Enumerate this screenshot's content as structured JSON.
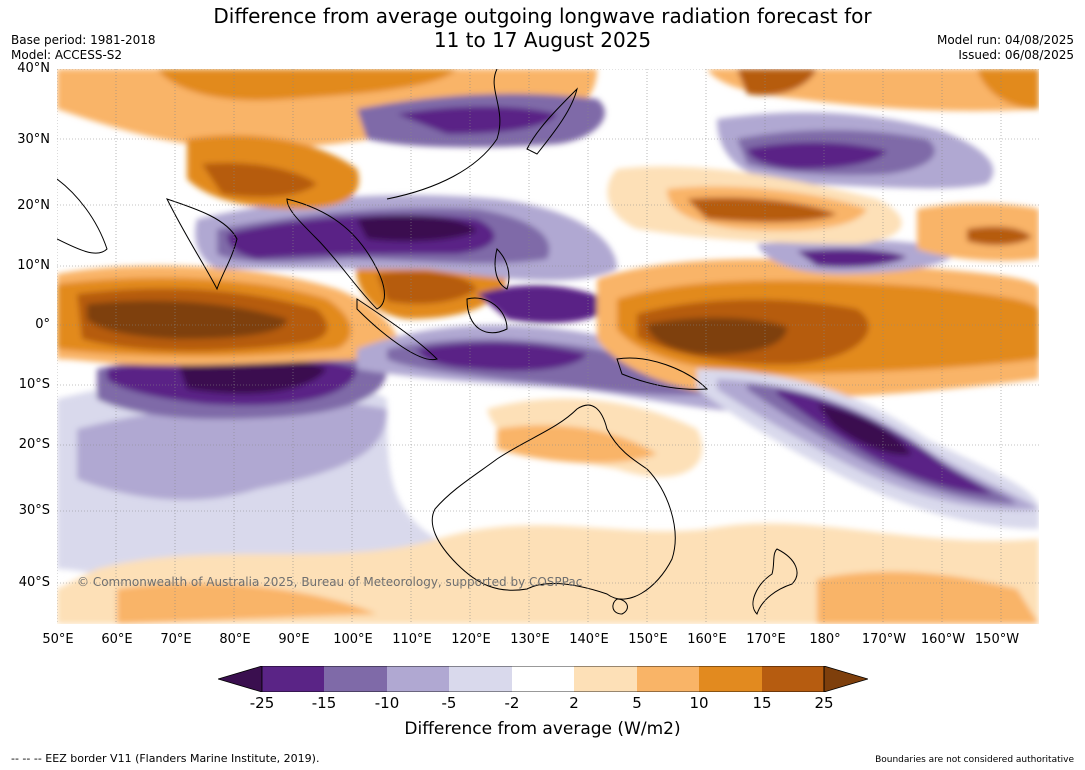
{
  "title": {
    "line1": "Difference from average outgoing longwave radiation forecast for",
    "line2": "11 to 17 August 2025"
  },
  "meta_left": {
    "base_period": "Base period: 1981-2018",
    "model": "Model: ACCESS-S2"
  },
  "meta_right": {
    "model_run": "Model run: 04/08/2025",
    "issued": "Issued: 06/08/2025"
  },
  "latitude_labels": [
    "40°N",
    "30°N",
    "20°N",
    "10°N",
    "0°",
    "10°S",
    "20°S",
    "30°S",
    "40°S"
  ],
  "longitude_labels": [
    "50°E",
    "60°E",
    "70°E",
    "80°E",
    "90°E",
    "100°E",
    "110°E",
    "120°E",
    "130°E",
    "140°E",
    "150°E",
    "160°E",
    "170°E",
    "180°",
    "170°W",
    "160°W",
    "150°W"
  ],
  "copyright": "© Commonwealth of Australia 2025, Bureau of Meteorology, supported by COSPPac",
  "colorbar": {
    "ticks": [
      "-25",
      "-15",
      "-10",
      "-5",
      "-2",
      "2",
      "5",
      "10",
      "15",
      "25"
    ],
    "colors": [
      "#3a0f4f",
      "#5a2486",
      "#7f6aa8",
      "#b0a8d2",
      "#d9d9ec",
      "#ffffff",
      "#fde0b7",
      "#f9b467",
      "#e28a1f",
      "#b65c10",
      "#7e3f0c"
    ],
    "title": "Difference from average (W/m2)"
  },
  "footer": {
    "left": "--  --  -- EEZ border V11 (Flanders Marine Institute, 2019).",
    "right": "Boundaries are not considered authoritative"
  }
}
